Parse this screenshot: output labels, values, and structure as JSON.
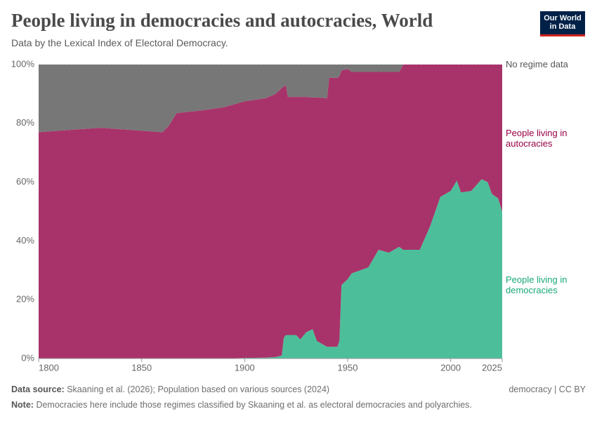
{
  "chart_data": {
    "type": "stacked-area",
    "title": "People living in democracies and autocracies, World",
    "subtitle": "Data by the Lexical Index of Electoral Democracy.",
    "logo": "Our World in Data",
    "source_label": "Data source:",
    "source": "Skaaning et al. (2026); Population based on various sources (2024)",
    "note_label": "Note:",
    "note": "Democracies here include those regimes classified by Skaaning et al. as electoral democracies and polyarchies.",
    "license": "democracy | CC BY",
    "x": [
      1800,
      1830,
      1860,
      1863,
      1867,
      1880,
      1890,
      1900,
      1910,
      1915,
      1918,
      1919,
      1920,
      1921,
      1925,
      1927,
      1930,
      1933,
      1935,
      1940,
      1941,
      1945,
      1946,
      1947,
      1950,
      1952,
      1960,
      1965,
      1970,
      1975,
      1977,
      1985,
      1990,
      1995,
      2000,
      2003,
      2005,
      2010,
      2015,
      2018,
      2020,
      2023,
      2025
    ],
    "series": [
      {
        "name": "People living in democracies",
        "color": "#4cbf9a",
        "label_color": "#18a77a",
        "values": [
          0,
          0,
          0,
          0,
          0,
          0,
          0,
          0.2,
          0.3,
          0.5,
          1,
          7,
          8,
          8,
          8,
          6.5,
          9,
          10,
          6,
          4,
          4,
          4,
          6,
          25,
          27,
          29,
          31,
          37,
          36,
          38,
          37,
          37,
          45,
          55,
          57,
          60.5,
          56.5,
          57,
          61,
          60,
          56,
          54.5,
          50
        ]
      },
      {
        "name": "People living in autocracies",
        "color": "#a8336a",
        "label_color": "#970046",
        "values": [
          77,
          78.5,
          77,
          79,
          83.5,
          84.5,
          85.5,
          87.3,
          88.2,
          89.5,
          91,
          85.5,
          85,
          81,
          81,
          82.5,
          80,
          78.8,
          82.8,
          84.5,
          91.5,
          91.5,
          90,
          73,
          71.5,
          68.5,
          66.5,
          60.5,
          61.5,
          59.5,
          63,
          63,
          55,
          45,
          43,
          39.5,
          43.5,
          43,
          39,
          40,
          44,
          45.5,
          50
        ]
      },
      {
        "name": "No regime data",
        "color": "#777777",
        "label_color": "#555555",
        "values": [
          23,
          21.5,
          23,
          21,
          16.5,
          15.5,
          14.5,
          12.5,
          11.5,
          10,
          8,
          7.5,
          7,
          11,
          11,
          11,
          11,
          11.2,
          11.2,
          11.5,
          4.5,
          4.5,
          4,
          2,
          1.5,
          2.5,
          2.5,
          2.5,
          2.5,
          2.5,
          0,
          0,
          0,
          0,
          0,
          0,
          0,
          0,
          0,
          0,
          0,
          0,
          0
        ]
      }
    ],
    "xlim": [
      1800,
      2025
    ],
    "xticks": [
      1800,
      1850,
      1900,
      1950,
      2000,
      2025
    ],
    "ylim": [
      0,
      100
    ],
    "yticks": [
      {
        "value": 0,
        "label": "0%"
      },
      {
        "value": 20,
        "label": "20%"
      },
      {
        "value": 40,
        "label": "40%"
      },
      {
        "value": 60,
        "label": "60%"
      },
      {
        "value": 80,
        "label": "80%"
      },
      {
        "value": 100,
        "label": "100%"
      }
    ],
    "grid": true
  }
}
